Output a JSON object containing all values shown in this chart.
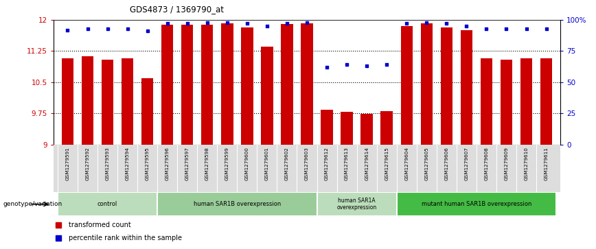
{
  "title": "GDS4873 / 1369790_at",
  "samples": [
    "GSM1279591",
    "GSM1279592",
    "GSM1279593",
    "GSM1279594",
    "GSM1279595",
    "GSM1279596",
    "GSM1279597",
    "GSM1279598",
    "GSM1279599",
    "GSM1279600",
    "GSM1279601",
    "GSM1279602",
    "GSM1279603",
    "GSM1279612",
    "GSM1279613",
    "GSM1279614",
    "GSM1279615",
    "GSM1279604",
    "GSM1279605",
    "GSM1279606",
    "GSM1279607",
    "GSM1279608",
    "GSM1279609",
    "GSM1279610",
    "GSM1279611"
  ],
  "bar_values": [
    11.08,
    11.13,
    11.05,
    11.08,
    10.6,
    11.88,
    11.88,
    11.88,
    11.92,
    11.82,
    11.35,
    11.9,
    11.92,
    9.83,
    9.78,
    9.73,
    9.8,
    11.85,
    11.92,
    11.82,
    11.75,
    11.08,
    11.05,
    11.08,
    11.08
  ],
  "percentile_values": [
    92,
    93,
    93,
    93,
    91,
    97,
    97,
    98,
    98,
    97,
    95,
    97,
    98,
    62,
    64,
    63,
    64,
    97,
    98,
    97,
    95,
    93,
    93,
    93,
    93
  ],
  "ymin": 9,
  "ymax": 12,
  "yticks": [
    9,
    9.75,
    10.5,
    11.25,
    12
  ],
  "ytick_labels": [
    "9",
    "9.75",
    "10.5",
    "11.25",
    "12"
  ],
  "right_yticks": [
    0,
    25,
    50,
    75,
    100
  ],
  "right_ytick_labels": [
    "0",
    "25",
    "50",
    "75",
    "100%"
  ],
  "bar_color": "#CC0000",
  "dot_color": "#0000CC",
  "bg_color": "#FFFFFF",
  "groups": [
    {
      "label": "control",
      "start": 0,
      "end": 4,
      "color": "#CCEECC"
    },
    {
      "label": "human SAR1B overexpression",
      "start": 5,
      "end": 12,
      "color": "#AADDAA"
    },
    {
      "label": "human SAR1A\noverexpression",
      "start": 13,
      "end": 16,
      "color": "#CCEECC"
    },
    {
      "label": "mutant human SAR1B overexpression",
      "start": 17,
      "end": 24,
      "color": "#44CC44"
    }
  ],
  "ylabel_left_color": "#CC0000",
  "ylabel_right_color": "#0000CC",
  "legend_bar_label": "transformed count",
  "legend_dot_label": "percentile rank within the sample",
  "genotype_label": "genotype/variation"
}
